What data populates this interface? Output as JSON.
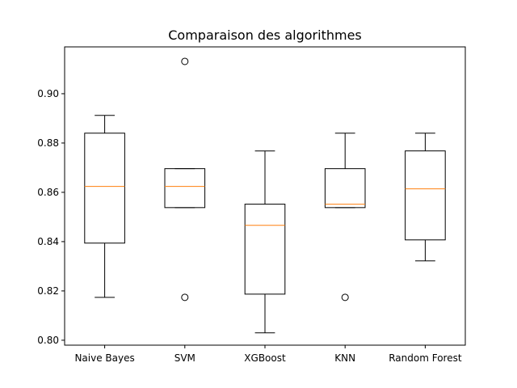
{
  "chart_data": {
    "type": "box",
    "title": "Comparaison des algorithmes",
    "xlabel": "",
    "ylabel": "",
    "ylim": [
      0.798,
      0.919
    ],
    "yticks": [
      0.8,
      0.82,
      0.84,
      0.86,
      0.88,
      0.9
    ],
    "ytick_labels": [
      "0.80",
      "0.82",
      "0.84",
      "0.86",
      "0.88",
      "0.90"
    ],
    "grid": false,
    "box_color": "#000000",
    "median_color": "#ff7f0e",
    "categories": [
      "Naive Bayes",
      "SVM",
      "XGBoost",
      "KNN",
      "Random Forest"
    ],
    "boxes": [
      {
        "name": "Naive Bayes",
        "whisker_low": 0.8174,
        "q1": 0.8394,
        "median": 0.8624,
        "q3": 0.884,
        "whisker_high": 0.8912,
        "outliers": []
      },
      {
        "name": "SVM",
        "whisker_low": 0.8538,
        "q1": 0.8538,
        "median": 0.8624,
        "q3": 0.8696,
        "whisker_high": 0.8696,
        "outliers": [
          0.9131,
          0.8174
        ]
      },
      {
        "name": "XGBoost",
        "whisker_low": 0.803,
        "q1": 0.8187,
        "median": 0.8466,
        "q3": 0.8552,
        "whisker_high": 0.8768,
        "outliers": []
      },
      {
        "name": "KNN",
        "whisker_low": 0.8538,
        "q1": 0.8538,
        "median": 0.8552,
        "q3": 0.8696,
        "whisker_high": 0.884,
        "outliers": [
          0.8174
        ]
      },
      {
        "name": "Random Forest",
        "whisker_low": 0.8322,
        "q1": 0.8407,
        "median": 0.8614,
        "q3": 0.8768,
        "whisker_high": 0.884,
        "outliers": []
      }
    ]
  }
}
